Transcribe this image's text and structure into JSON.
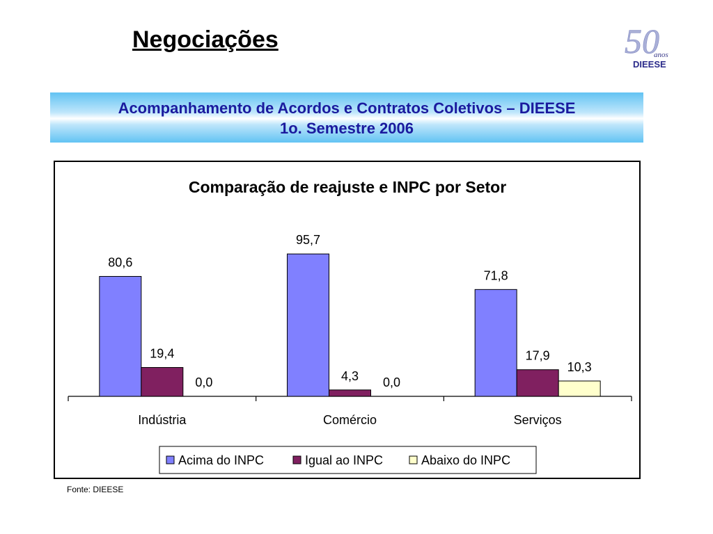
{
  "page": {
    "title": "Negociações",
    "logo": {
      "icon": "dieese-50-anos-logo",
      "text_number": "50",
      "text_anos": "anos",
      "text_brand": "DIEESE"
    },
    "banner": {
      "line1": "Acompanhamento de Acordos e Contratos Coletivos – DIEESE",
      "line2": "1o. Semestre 2006"
    },
    "source": "Fonte: DIEESE"
  },
  "chart_data": {
    "type": "bar",
    "title": "Comparação de reajuste e INPC por Setor",
    "categories": [
      "Indústria",
      "Comércio",
      "Serviços"
    ],
    "series": [
      {
        "name": "Acima do INPC",
        "values": [
          80.6,
          95.7,
          71.8
        ],
        "labels": [
          "80,6",
          "95,7",
          "71,8"
        ],
        "color": "#8080ff"
      },
      {
        "name": "Igual ao INPC",
        "values": [
          19.4,
          4.3,
          17.9
        ],
        "labels": [
          "19,4",
          "4,3",
          "17,9"
        ],
        "color": "#802060"
      },
      {
        "name": "Abaixo do INPC",
        "values": [
          0.0,
          0.0,
          10.3
        ],
        "labels": [
          "0,0",
          "0,0",
          "10,3"
        ],
        "color": "#ffffcc"
      }
    ],
    "ylim": [
      0,
      100
    ],
    "grid": false,
    "legend_position": "bottom",
    "xlabel": "",
    "ylabel": ""
  }
}
